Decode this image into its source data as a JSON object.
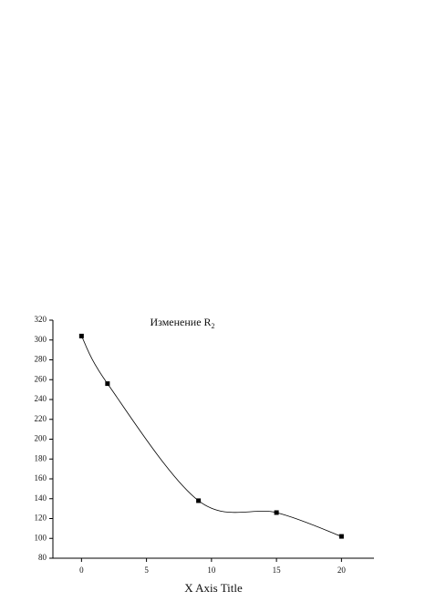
{
  "chart_data": {
    "type": "line",
    "title": "Изменение R",
    "title_subscript": "2",
    "xlabel": "X Axis Title",
    "x": [
      0,
      2,
      9,
      15,
      20
    ],
    "series": [
      {
        "name": "R2",
        "color": "#000000",
        "values": [
          304,
          256,
          138,
          126,
          102
        ]
      }
    ],
    "xlim": [
      -2.2,
      22.5
    ],
    "xticks": [
      0,
      5,
      10,
      15,
      20
    ],
    "ylim": [
      80,
      320
    ],
    "yticks": [
      80,
      100,
      120,
      140,
      160,
      180,
      200,
      220,
      240,
      260,
      280,
      300,
      320
    ],
    "smooth": true,
    "marker": "square"
  }
}
